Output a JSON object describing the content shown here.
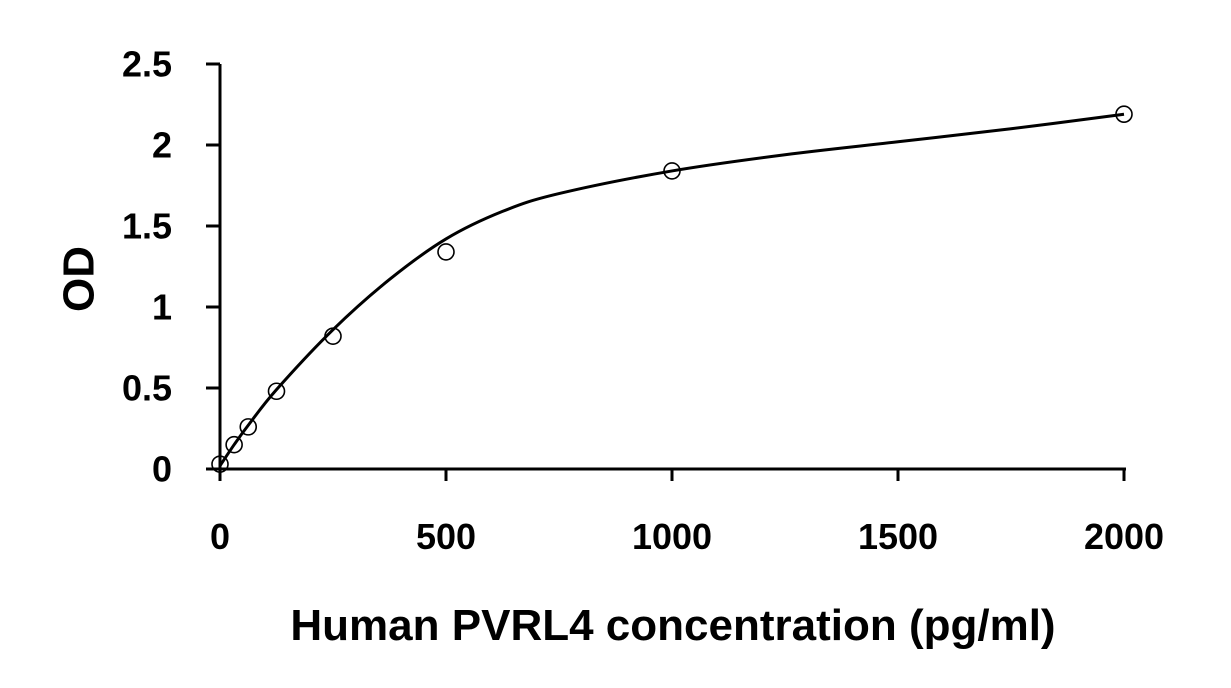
{
  "chart_data": {
    "type": "scatter",
    "xlabel": "Human PVRL4 concentration (pg/ml)",
    "ylabel": "OD",
    "xlim": [
      0,
      2000
    ],
    "ylim": [
      0,
      2.5
    ],
    "x_ticks": [
      0,
      500,
      1000,
      1500,
      2000
    ],
    "y_ticks": [
      0,
      0.5,
      1,
      1.5,
      2,
      2.5
    ],
    "x_tick_labels": [
      "0",
      "500",
      "1000",
      "1500",
      "2000"
    ],
    "y_tick_labels": [
      "0",
      "0.5",
      "1",
      "1.5",
      "2",
      "2.5"
    ],
    "grid": false,
    "legend": "none",
    "series": [
      {
        "marker": "open-circle",
        "x": [
          0,
          31.25,
          62.5,
          125,
          250,
          500,
          1000,
          2000
        ],
        "y": [
          0.03,
          0.15,
          0.26,
          0.48,
          0.82,
          1.34,
          1.84,
          2.19
        ]
      }
    ],
    "fit_curve": {
      "style": "solid-line",
      "x": [
        0,
        31.25,
        62.5,
        125,
        250,
        375,
        500,
        625,
        750,
        1000,
        1250,
        1500,
        1750,
        2000
      ],
      "y": [
        0.02,
        0.15,
        0.27,
        0.49,
        0.86,
        1.17,
        1.42,
        1.59,
        1.7,
        1.84,
        1.94,
        2.02,
        2.1,
        2.19
      ]
    },
    "colors": {
      "axis": "#000000",
      "marker": "#000000",
      "curve": "#000000"
    }
  }
}
